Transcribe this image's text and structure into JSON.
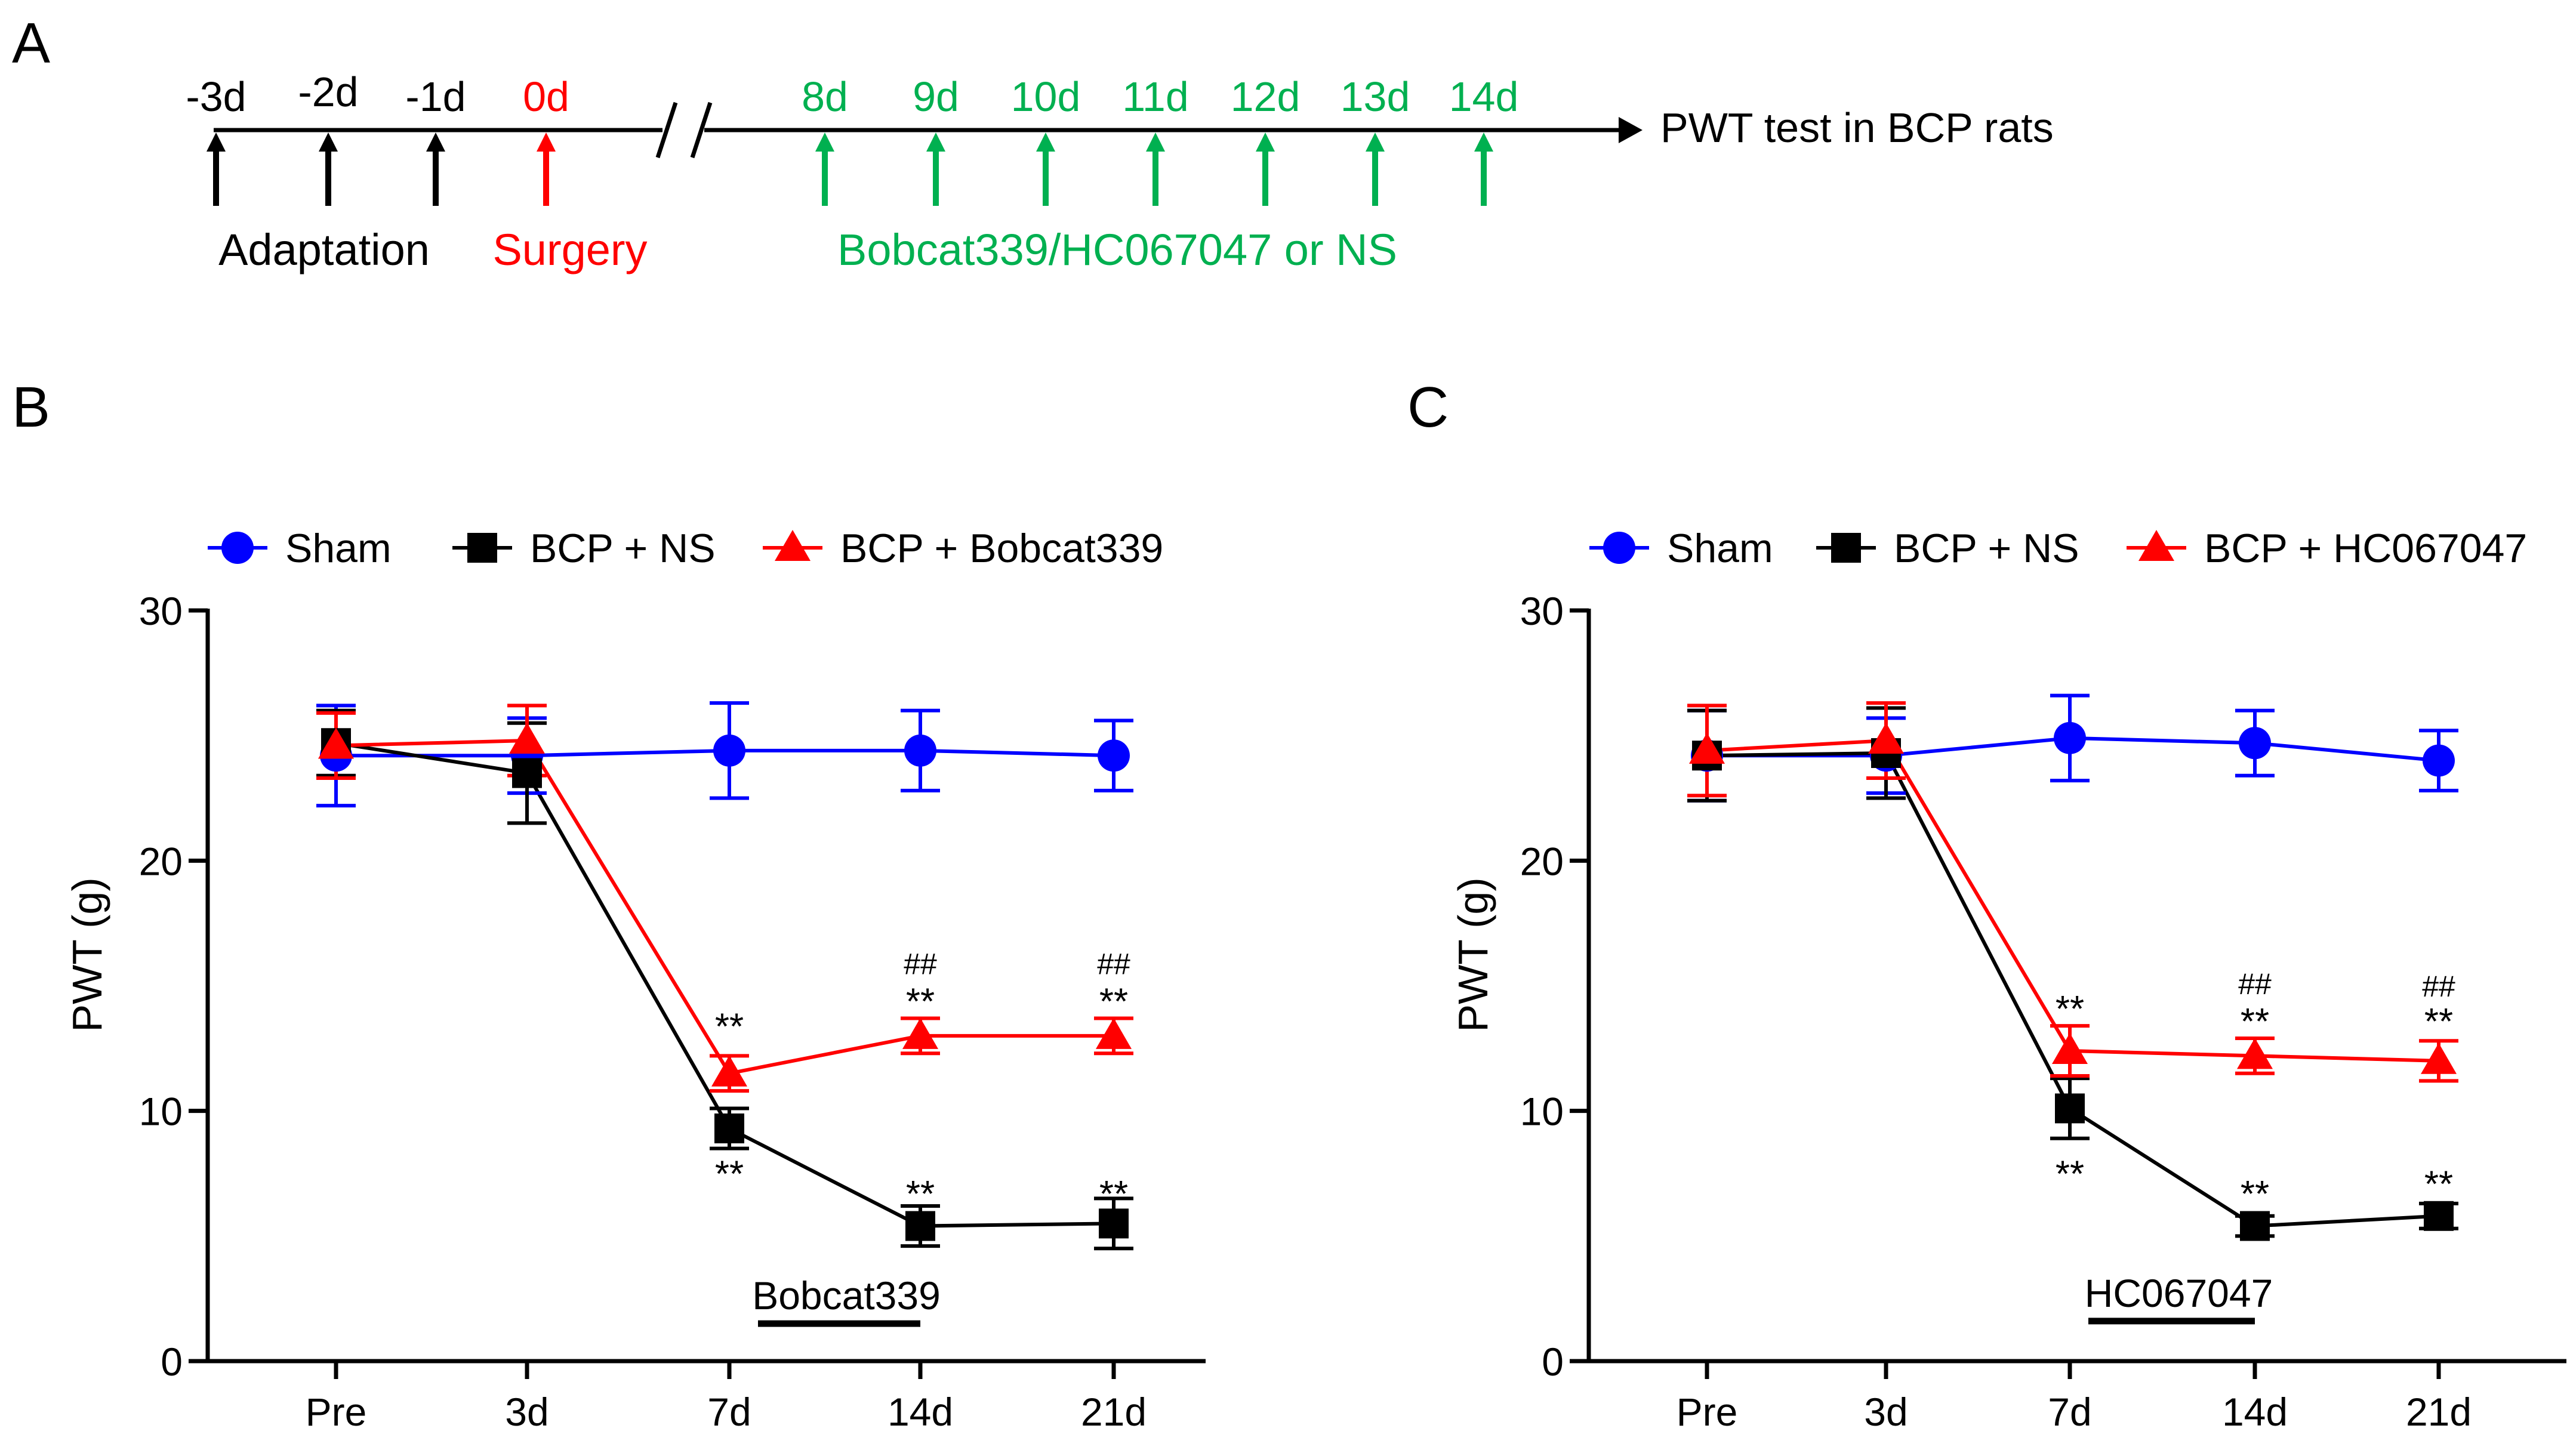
{
  "panel_a": {
    "letter": "A",
    "pre_days": [
      {
        "label": "-3d",
        "color": "#000000"
      },
      {
        "label": "-2d",
        "color": "#000000"
      },
      {
        "label": "-1d",
        "color": "#000000"
      },
      {
        "label": "0d",
        "color": "#ff0000"
      }
    ],
    "post_days": [
      "8d",
      "9d",
      "10d",
      "11d",
      "12d",
      "13d",
      "14d"
    ],
    "end_label": "PWT test in BCP rats",
    "adaptation_label": "Adaptation",
    "surgery_label": "Surgery",
    "treatment_label": "Bobcat339/HC067047 or NS",
    "colors": {
      "black": "#000000",
      "red": "#ff0000",
      "green": "#00b050"
    }
  },
  "chart_data": [
    {
      "letter": "B",
      "type": "line",
      "categories": [
        "Pre",
        "3d",
        "7d",
        "14d",
        "21d"
      ],
      "ylabel": "PWT (g)",
      "xlabel": "",
      "ylim": [
        0,
        30
      ],
      "yticks": [
        0,
        10,
        20,
        30
      ],
      "legend_position": "top",
      "series": [
        {
          "name": "Sham",
          "marker": "circle",
          "color": "#0000ff",
          "values": [
            24.2,
            24.2,
            24.4,
            24.4,
            24.2
          ],
          "errors": [
            2.0,
            1.5,
            1.9,
            1.6,
            1.4
          ]
        },
        {
          "name": "BCP + NS",
          "marker": "square",
          "color": "#000000",
          "values": [
            24.7,
            23.5,
            9.3,
            5.4,
            5.5
          ],
          "errors": [
            1.3,
            2.0,
            0.8,
            0.8,
            1.0
          ]
        },
        {
          "name": "BCP + Bobcat339",
          "marker": "triangle",
          "color": "#ff0000",
          "values": [
            24.6,
            24.8,
            11.5,
            13.0,
            13.0
          ],
          "errors": [
            1.3,
            1.4,
            0.7,
            0.7,
            0.7
          ]
        }
      ],
      "annotations": [
        {
          "text": "**",
          "category": 2,
          "value": 13.3
        },
        {
          "text": "**",
          "category": 2,
          "value": 7.4
        },
        {
          "text": "##",
          "category": 3,
          "value": 15.9
        },
        {
          "text": "**",
          "category": 3,
          "value": 14.3
        },
        {
          "text": "**",
          "category": 3,
          "value": 6.6
        },
        {
          "text": "##",
          "category": 4,
          "value": 15.9
        },
        {
          "text": "**",
          "category": 4,
          "value": 14.3
        },
        {
          "text": "**",
          "category": 4,
          "value": 6.6
        }
      ],
      "treatment_bar": {
        "label": "Bobcat339",
        "from": 2.15,
        "to": 3.0,
        "value": 1.5
      }
    },
    {
      "letter": "C",
      "type": "line",
      "categories": [
        "Pre",
        "3d",
        "7d",
        "14d",
        "21d"
      ],
      "ylabel": "PWT (g)",
      "xlabel": "",
      "ylim": [
        0,
        30
      ],
      "yticks": [
        0,
        10,
        20,
        30
      ],
      "legend_position": "top",
      "series": [
        {
          "name": "Sham",
          "marker": "circle",
          "color": "#0000ff",
          "values": [
            24.2,
            24.2,
            24.9,
            24.7,
            24.0
          ],
          "errors": [
            1.8,
            1.5,
            1.7,
            1.3,
            1.2
          ]
        },
        {
          "name": "BCP + NS",
          "marker": "square",
          "color": "#000000",
          "values": [
            24.2,
            24.3,
            10.1,
            5.4,
            5.8
          ],
          "errors": [
            1.8,
            1.8,
            1.2,
            0.4,
            0.5
          ]
        },
        {
          "name": "BCP + HC067047",
          "marker": "triangle",
          "color": "#ff0000",
          "values": [
            24.4,
            24.8,
            12.4,
            12.2,
            12.0
          ],
          "errors": [
            1.8,
            1.5,
            1.0,
            0.7,
            0.8
          ]
        }
      ],
      "annotations": [
        {
          "text": "**",
          "category": 2,
          "value": 14.0
        },
        {
          "text": "**",
          "category": 2,
          "value": 7.4
        },
        {
          "text": "##",
          "category": 3,
          "value": 15.1
        },
        {
          "text": "**",
          "category": 3,
          "value": 13.5
        },
        {
          "text": "**",
          "category": 3,
          "value": 6.6
        },
        {
          "text": "##",
          "category": 4,
          "value": 15.0
        },
        {
          "text": "**",
          "category": 4,
          "value": 13.5
        },
        {
          "text": "**",
          "category": 4,
          "value": 7.0
        }
      ],
      "treatment_bar": {
        "label": "HC067047",
        "from": 2.1,
        "to": 3.0,
        "value": 1.6
      }
    }
  ]
}
